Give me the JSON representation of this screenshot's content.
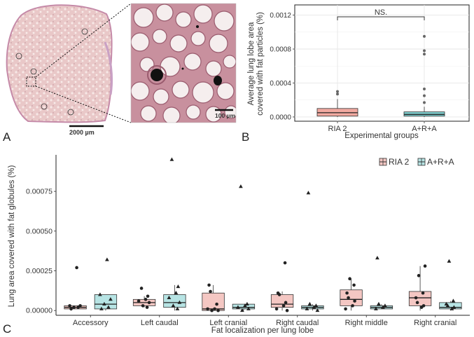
{
  "colors": {
    "ria2_fill": "#F4C7C3",
    "ria2_fill_strong": "#F1A9A0",
    "arra_fill": "#B7E4E4",
    "arra_fill_strong": "#7FD0D0",
    "grid": "#e6e6e6",
    "point": "#222222",
    "outlier": "#666666"
  },
  "panel_a": {
    "letter": "A",
    "scale_bar_overview": "2000 µm",
    "scale_bar_inset": "100 µm"
  },
  "panel_b": {
    "letter": "B",
    "significance_label": "NS."
  },
  "panel_c": {
    "letter": "C"
  },
  "chart_data": [
    {
      "id": "B",
      "type": "box",
      "title": "",
      "xlabel": "Experimental groups",
      "ylabel": "Average lung lobe area covered with fat particles (%)",
      "ylabel_lines": [
        "Average lung lobe area",
        "covered with fat particles (%)"
      ],
      "ylim": [
        -5e-05,
        0.00132
      ],
      "yticks": [
        0.0,
        0.0004,
        0.0008,
        0.0012
      ],
      "ytick_labels": [
        "0.0000",
        "0.0004",
        "0.0008",
        "0.0012"
      ],
      "categories": [
        "RIA 2",
        "A+R+A"
      ],
      "series": [
        {
          "name": "RIA 2",
          "q1": 1e-05,
          "median": 5e-05,
          "q3": 0.0001,
          "whisker_low": 0.0,
          "whisker_high": 0.00021,
          "outliers": [
            0.00027,
            0.0003
          ]
        },
        {
          "name": "A+R+A",
          "q1": 1e-05,
          "median": 3e-05,
          "q3": 6e-05,
          "whisker_low": 0.0,
          "whisker_high": 0.00012,
          "outliers": [
            0.00017,
            0.00025,
            0.00033,
            0.00074,
            0.00078,
            0.00095
          ]
        }
      ],
      "annotation": {
        "text": "NS.",
        "between": [
          "RIA 2",
          "A+R+A"
        ],
        "y": 0.00118
      }
    },
    {
      "id": "C",
      "type": "box",
      "title": "",
      "xlabel": "Fat localization per lung lobe",
      "ylabel": "Lung area covered with fat globules (%)",
      "ylim": [
        -3e-05,
        0.00098
      ],
      "yticks": [
        0.0,
        0.00025,
        0.0005,
        0.00075
      ],
      "ytick_labels": [
        "0.00000",
        "0.00025",
        "0.00050",
        "0.00075"
      ],
      "legend": {
        "position": "top-right",
        "entries": [
          "RIA 2",
          "A+R+A"
        ]
      },
      "categories": [
        "Accessory",
        "Left caudal",
        "Left cranial",
        "Right caudal",
        "Right middle",
        "Right cranial"
      ],
      "series": [
        {
          "name": "RIA 2",
          "marker": "circle",
          "boxes": [
            {
              "q1": 1e-05,
              "median": 2e-05,
              "q3": 3e-05,
              "whisker_low": 1e-05,
              "whisker_high": 3e-05,
              "outliers": [
                0.00027
              ],
              "points": [
                1e-05,
                2e-05,
                2e-05,
                3e-05,
                3e-05,
                0.00027
              ]
            },
            {
              "q1": 3e-05,
              "median": 5e-05,
              "q3": 7e-05,
              "whisker_low": 2e-05,
              "whisker_high": 9e-05,
              "outliers": [
                0.00014
              ],
              "points": [
                2e-05,
                3e-05,
                5e-05,
                6e-05,
                7e-05,
                9e-05,
                0.00014
              ]
            },
            {
              "q1": 0.0,
              "median": 1e-05,
              "q3": 0.00011,
              "whisker_low": 0.0,
              "whisker_high": 0.00016,
              "outliers": [],
              "points": [
                0.0,
                0.0,
                1e-05,
                1e-05,
                4e-05,
                0.00012,
                0.00016
              ]
            },
            {
              "q1": 2e-05,
              "median": 4e-05,
              "q3": 0.0001,
              "whisker_low": 0.0,
              "whisker_high": 0.00012,
              "outliers": [
                0.0003
              ],
              "points": [
                0.0,
                1e-05,
                3e-05,
                5e-05,
                0.0001,
                0.00011,
                0.0003
              ]
            },
            {
              "q1": 3e-05,
              "median": 7e-05,
              "q3": 0.00013,
              "whisker_low": 0.0,
              "whisker_high": 0.0002,
              "outliers": [],
              "points": [
                1e-05,
                3e-05,
                6e-05,
                8e-05,
                0.00011,
                0.00016,
                0.0002
              ]
            },
            {
              "q1": 3e-05,
              "median": 8e-05,
              "q3": 0.00012,
              "whisker_low": 0.0,
              "whisker_high": 0.00028,
              "outliers": [],
              "points": [
                2e-05,
                3e-05,
                5e-05,
                8e-05,
                0.00011,
                0.00022,
                0.00028
              ]
            }
          ]
        },
        {
          "name": "A+R+A",
          "marker": "triangle",
          "boxes": [
            {
              "q1": 1e-05,
              "median": 4e-05,
              "q3": 0.0001,
              "whisker_low": 0.0,
              "whisker_high": 0.0001,
              "outliers": [
                0.00032
              ],
              "points": [
                1e-05,
                2e-05,
                4e-05,
                7e-05,
                0.0001,
                0.00032
              ]
            },
            {
              "q1": 2e-05,
              "median": 5e-05,
              "q3": 0.0001,
              "whisker_low": 0.0,
              "whisker_high": 0.00016,
              "outliers": [
                0.00095
              ],
              "points": [
                1e-05,
                3e-05,
                5e-05,
                8e-05,
                0.00011,
                0.00015,
                0.00095
              ]
            },
            {
              "q1": 1e-05,
              "median": 2e-05,
              "q3": 4e-05,
              "whisker_low": 0.0,
              "whisker_high": 4e-05,
              "outliers": [
                0.00078
              ],
              "points": [
                0.0,
                1e-05,
                2e-05,
                3e-05,
                4e-05,
                0.00078
              ]
            },
            {
              "q1": 1e-05,
              "median": 2e-05,
              "q3": 3e-05,
              "whisker_low": 0.0,
              "whisker_high": 4e-05,
              "outliers": [
                0.00074
              ],
              "points": [
                0.0,
                1e-05,
                2e-05,
                3e-05,
                4e-05,
                0.00074
              ]
            },
            {
              "q1": 1e-05,
              "median": 2e-05,
              "q3": 3e-05,
              "whisker_low": 1e-05,
              "whisker_high": 4e-05,
              "outliers": [
                0.00033
              ],
              "points": [
                1e-05,
                2e-05,
                3e-05,
                4e-05,
                0.00033
              ]
            },
            {
              "q1": 1e-05,
              "median": 2e-05,
              "q3": 5e-05,
              "whisker_low": 0.0,
              "whisker_high": 6e-05,
              "outliers": [
                0.00031
              ],
              "points": [
                1e-05,
                2e-05,
                3e-05,
                4e-05,
                6e-05,
                0.00031
              ]
            }
          ]
        }
      ]
    }
  ]
}
